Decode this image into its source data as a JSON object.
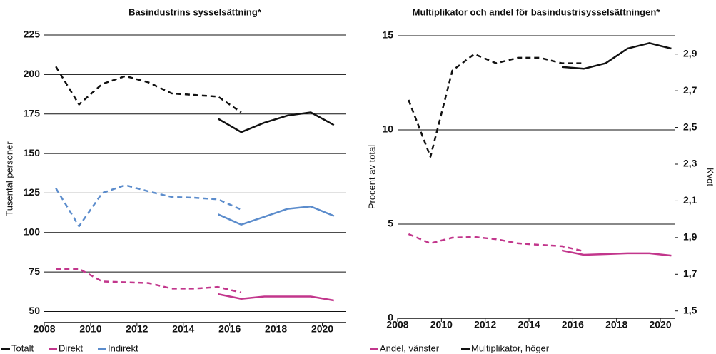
{
  "chart_data": [
    {
      "type": "line",
      "title": "Basindustrins sysselsättning*",
      "ylabel": "Tusental personer",
      "x": [
        2008.5,
        2009.5,
        2010.5,
        2011.5,
        2012.5,
        2013.5,
        2014.5,
        2015.5,
        2016.5,
        2017.5,
        2018.5,
        2019.5,
        2020.5
      ],
      "xlim": [
        2008,
        2021
      ],
      "xticks": [
        2008,
        2010,
        2012,
        2014,
        2016,
        2018,
        2020
      ],
      "ylim": [
        43,
        225
      ],
      "yticks": [
        50,
        75,
        100,
        125,
        150,
        175,
        200,
        225
      ],
      "grid": true,
      "series": [
        {
          "name": "Totalt",
          "color": "#111111",
          "values": [
            null,
            null,
            null,
            null,
            null,
            null,
            null,
            172,
            163.5,
            169.5,
            174,
            176,
            168
          ],
          "dashed_values": [
            205,
            181,
            194,
            199,
            195,
            188,
            187,
            186,
            176,
            null,
            null,
            null,
            null
          ]
        },
        {
          "name": "Direkt",
          "color": "#c2368c",
          "values": [
            null,
            null,
            null,
            null,
            null,
            null,
            null,
            61,
            58,
            59.5,
            59.5,
            59.5,
            57
          ],
          "dashed_values": [
            77,
            77,
            69,
            68.5,
            68,
            64.5,
            64.5,
            65.5,
            62,
            null,
            null,
            null,
            null
          ]
        },
        {
          "name": "Indirekt",
          "color": "#5b8ccc",
          "values": [
            null,
            null,
            null,
            null,
            null,
            null,
            null,
            111.5,
            105,
            110,
            115,
            116.5,
            110.5
          ],
          "dashed_values": [
            128,
            104,
            125,
            130,
            126,
            122.5,
            122,
            121,
            114.5,
            null,
            null,
            null,
            null
          ]
        }
      ]
    },
    {
      "type": "line",
      "title": "Multiplikator och andel för basindustrisysselsättningen*",
      "ylabel": "Procent av total",
      "y2label": "Kvot",
      "x": [
        2008.5,
        2009.5,
        2010.5,
        2011.5,
        2012.5,
        2013.5,
        2014.5,
        2015.5,
        2016.5,
        2017.5,
        2018.5,
        2019.5,
        2020.5
      ],
      "xlim": [
        2008,
        2020.65
      ],
      "xticks": [
        2008,
        2010,
        2012,
        2014,
        2016,
        2018,
        2020
      ],
      "ylim": [
        0,
        15
      ],
      "yticks": [
        0,
        5,
        10,
        15
      ],
      "y2lim": [
        1.46,
        3.0
      ],
      "y2ticks": [
        {
          "value": 1.5,
          "label": "1,5"
        },
        {
          "value": 1.7,
          "label": "1,7"
        },
        {
          "value": 1.9,
          "label": "1,9"
        },
        {
          "value": 2.1,
          "label": "2,1"
        },
        {
          "value": 2.3,
          "label": "2,3"
        },
        {
          "value": 2.5,
          "label": "2,5"
        },
        {
          "value": 2.7,
          "label": "2,7"
        },
        {
          "value": 2.9,
          "label": "2,9"
        }
      ],
      "grid": true,
      "series": [
        {
          "name": "Andel, vänster",
          "color": "#c2368c",
          "values": [
            null,
            null,
            null,
            null,
            null,
            null,
            null,
            3.6,
            3.37,
            3.41,
            3.45,
            3.45,
            3.33
          ],
          "dashed_values": [
            4.47,
            3.98,
            4.28,
            4.32,
            4.2,
            3.98,
            3.9,
            3.83,
            3.56,
            null,
            null,
            null,
            null
          ]
        },
        {
          "name": "Multiplikator, höger",
          "color": "#111111",
          "axis": "y2",
          "values": [
            null,
            null,
            null,
            null,
            null,
            null,
            null,
            2.83,
            2.82,
            2.85,
            2.93,
            2.96,
            2.93
          ],
          "dashed_values": [
            2.65,
            2.34,
            2.81,
            2.9,
            2.85,
            2.88,
            2.88,
            2.85,
            2.85,
            null,
            null,
            null,
            null
          ]
        }
      ]
    }
  ]
}
